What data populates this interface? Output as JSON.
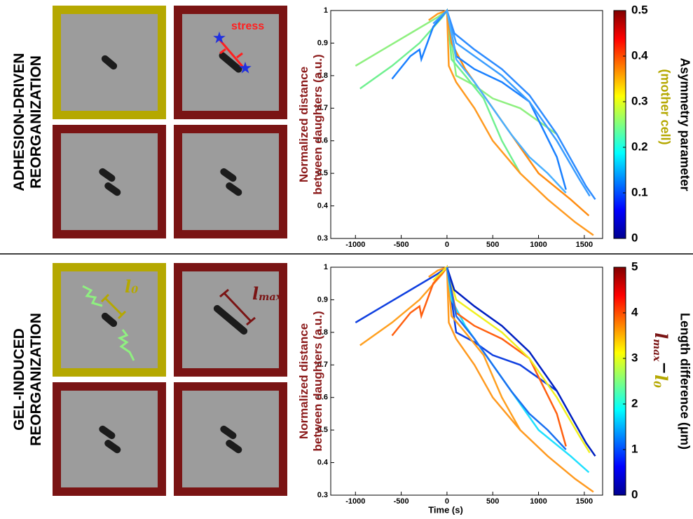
{
  "panels": [
    {
      "title_lines": [
        "ADHESION-DRIVEN",
        "REORGANIZATION"
      ],
      "stress_label": "stress"
    },
    {
      "title_lines": [
        "GEL-INDUCED",
        "REORGANIZATION"
      ],
      "l0": {
        "symbol": "l",
        "sub": "0"
      },
      "lmax": {
        "symbol": "l",
        "sub": "max"
      }
    }
  ],
  "chart_data": [
    {
      "type": "line",
      "ylabel": [
        "Normalized distance",
        "between daughters (a.u.)"
      ],
      "xlim": [
        -1270,
        1700
      ],
      "ylim": [
        0.3,
        1.0
      ],
      "xticks": [
        -1000,
        -500,
        0,
        500,
        1000,
        1500
      ],
      "yticks": [
        0.3,
        0.4,
        0.5,
        0.6,
        0.7,
        0.8,
        0.9,
        1
      ],
      "colorbar": {
        "label": "Asymmetry parameter",
        "sublabel": "(mother cell)",
        "lim": [
          0,
          0.5
        ],
        "ticks": [
          0,
          0.1,
          0.2,
          0.3,
          0.4,
          0.5
        ]
      },
      "series": [
        {
          "color": "#8ff080",
          "x": [
            -1000,
            -700,
            -400,
            -100,
            0,
            100,
            300,
            500,
            800,
            1200
          ],
          "values": [
            0.83,
            0.88,
            0.93,
            0.98,
            1.0,
            0.8,
            0.77,
            0.73,
            0.7,
            0.62
          ]
        },
        {
          "color": "#70f090",
          "x": [
            -950,
            -600,
            -300,
            -50,
            0,
            50,
            200,
            400,
            600,
            800
          ],
          "values": [
            0.76,
            0.83,
            0.9,
            0.98,
            1.0,
            0.85,
            0.8,
            0.73,
            0.6,
            0.5
          ]
        },
        {
          "color": "#ff9a20",
          "x": [
            -200,
            -100,
            0,
            20,
            100,
            300,
            500,
            800,
            1100,
            1400,
            1600
          ],
          "values": [
            0.97,
            0.99,
            1.0,
            0.83,
            0.78,
            0.7,
            0.6,
            0.5,
            0.42,
            0.35,
            0.31
          ]
        },
        {
          "color": "#ff8c10",
          "x": [
            -100,
            0,
            50,
            200,
            400,
            700,
            1000,
            1350,
            1550
          ],
          "values": [
            0.97,
            1.0,
            0.9,
            0.82,
            0.74,
            0.62,
            0.5,
            0.42,
            0.37
          ]
        },
        {
          "color": "#1a80ff",
          "x": [
            -600,
            -400,
            -300,
            -280,
            -150,
            0,
            100,
            300,
            600,
            900,
            1200,
            1300
          ],
          "values": [
            0.79,
            0.86,
            0.88,
            0.85,
            0.95,
            1.0,
            0.86,
            0.82,
            0.78,
            0.72,
            0.55,
            0.45
          ]
        },
        {
          "color": "#3b9dff",
          "x": [
            -150,
            0,
            100,
            300,
            600,
            900,
            1200,
            1450,
            1560
          ],
          "values": [
            0.96,
            1.0,
            0.9,
            0.86,
            0.8,
            0.72,
            0.6,
            0.48,
            0.43
          ]
        },
        {
          "color": "#2e8cff",
          "x": [
            0,
            80,
            300,
            600,
            900,
            1200,
            1400,
            1520,
            1620
          ],
          "values": [
            1.0,
            0.93,
            0.88,
            0.82,
            0.74,
            0.62,
            0.52,
            0.46,
            0.42
          ]
        },
        {
          "color": "#4ab0ff",
          "x": [
            0,
            100,
            300,
            500,
            700,
            900,
            1100,
            1300
          ],
          "values": [
            1.0,
            0.85,
            0.78,
            0.7,
            0.62,
            0.55,
            0.5,
            0.44
          ]
        }
      ]
    },
    {
      "type": "line",
      "ylabel": [
        "Normalized distance",
        "between daughters (a.u.)"
      ],
      "xlabel": "Time (s)",
      "xlim": [
        -1270,
        1700
      ],
      "ylim": [
        0.3,
        1.0
      ],
      "xticks": [
        -1000,
        -500,
        0,
        500,
        1000,
        1500
      ],
      "yticks": [
        0.3,
        0.4,
        0.5,
        0.6,
        0.7,
        0.8,
        0.9,
        1
      ],
      "colorbar": {
        "label": "Length difference (μm)",
        "sublabel_parts": [
          "l",
          "max",
          "−",
          "l",
          "0"
        ],
        "lim": [
          0,
          5
        ],
        "ticks": [
          0,
          1,
          2,
          3,
          4,
          5
        ]
      },
      "series": [
        {
          "color": "#1040e0",
          "x": [
            -1000,
            -700,
            -400,
            -100,
            0,
            100,
            300,
            500,
            800,
            1200
          ],
          "values": [
            0.83,
            0.88,
            0.93,
            0.98,
            1.0,
            0.8,
            0.77,
            0.73,
            0.7,
            0.62
          ]
        },
        {
          "color": "#ffa020",
          "x": [
            -950,
            -600,
            -300,
            -50,
            0,
            50,
            200,
            400,
            600,
            800
          ],
          "values": [
            0.76,
            0.83,
            0.9,
            0.98,
            1.0,
            0.85,
            0.8,
            0.73,
            0.6,
            0.5
          ]
        },
        {
          "color": "#ff9a20",
          "x": [
            -200,
            -100,
            0,
            20,
            100,
            300,
            500,
            800,
            1100,
            1400,
            1600
          ],
          "values": [
            0.97,
            0.99,
            1.0,
            0.83,
            0.78,
            0.7,
            0.6,
            0.5,
            0.42,
            0.35,
            0.31
          ]
        },
        {
          "color": "#20e0ff",
          "x": [
            -100,
            0,
            50,
            200,
            400,
            700,
            1000,
            1350,
            1550
          ],
          "values": [
            0.97,
            1.0,
            0.9,
            0.82,
            0.74,
            0.62,
            0.5,
            0.42,
            0.37
          ]
        },
        {
          "color": "#ff6010",
          "x": [
            -600,
            -400,
            -300,
            -280,
            -150,
            0,
            100,
            300,
            600,
            900,
            1200,
            1300
          ],
          "values": [
            0.79,
            0.86,
            0.88,
            0.85,
            0.95,
            1.0,
            0.86,
            0.82,
            0.78,
            0.72,
            0.55,
            0.45
          ]
        },
        {
          "color": "#f0f020",
          "x": [
            -150,
            0,
            100,
            300,
            600,
            900,
            1200,
            1450,
            1560
          ],
          "values": [
            0.96,
            1.0,
            0.9,
            0.86,
            0.8,
            0.72,
            0.6,
            0.48,
            0.43
          ]
        },
        {
          "color": "#0020c0",
          "x": [
            0,
            80,
            300,
            600,
            900,
            1200,
            1400,
            1520,
            1620
          ],
          "values": [
            1.0,
            0.93,
            0.88,
            0.82,
            0.74,
            0.62,
            0.52,
            0.46,
            0.42
          ]
        },
        {
          "color": "#1a70f0",
          "x": [
            0,
            100,
            300,
            500,
            700,
            900,
            1100,
            1300
          ],
          "values": [
            1.0,
            0.85,
            0.78,
            0.7,
            0.62,
            0.55,
            0.5,
            0.44
          ]
        }
      ]
    }
  ]
}
